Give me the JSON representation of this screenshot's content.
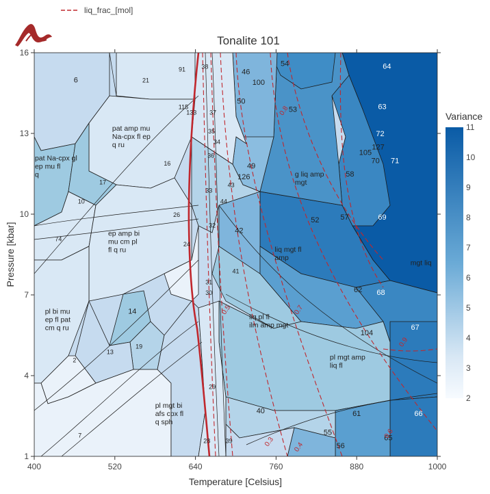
{
  "legend": {
    "series_label": "liq_frac_[mol]",
    "line_color": "#c0272d",
    "line_style": "dashed"
  },
  "logo": {
    "name": "wave-logo-icon",
    "color": "#a52a2a"
  },
  "colorbar": {
    "title": "Variance",
    "ticks": [
      "11",
      "10",
      "9",
      "8",
      "7",
      "6",
      "5",
      "4",
      "3",
      "2"
    ],
    "colors": [
      "#0a5ba6",
      "#d9e8f5",
      "#f7fbff"
    ],
    "min": 2,
    "max": 11
  },
  "chart_data": {
    "type": "phase-diagram",
    "title": "Tonalite 101",
    "xlabel": "Temperature [Celsius]",
    "ylabel": "Pressure [kbar]",
    "xlim": [
      400,
      1000
    ],
    "ylim": [
      1,
      16
    ],
    "x_ticks": [
      400,
      520,
      640,
      760,
      880,
      1000
    ],
    "x_tick_labels": [
      "400",
      "520",
      "640",
      "760",
      "880",
      "1000"
    ],
    "y_ticks": [
      1,
      4,
      7,
      10,
      13,
      16
    ],
    "y_tick_labels": [
      "1",
      "4",
      "7",
      "10",
      "13",
      "16"
    ],
    "grid": false,
    "legend_position": "top-left",
    "variance_fields": [
      {
        "label": "6",
        "T": 462,
        "P": 14.9,
        "variance": 6
      },
      {
        "label": "21",
        "T": 566,
        "P": 14.9,
        "variance": 4
      },
      {
        "label": "46",
        "T": 715,
        "P": 15.2,
        "variance": 5
      },
      {
        "label": "54",
        "T": 773,
        "P": 15.5,
        "variance": 7
      },
      {
        "label": "64",
        "T": 925,
        "P": 15.4,
        "variance": 10
      },
      {
        "label": "53",
        "T": 785,
        "P": 13.8,
        "variance": 7
      },
      {
        "label": "63",
        "T": 918,
        "P": 13.9,
        "variance": 9
      },
      {
        "label": "100",
        "T": 734,
        "P": 14.8,
        "variance": 5
      },
      {
        "label": "50",
        "T": 708,
        "P": 14.1,
        "variance": 5
      },
      {
        "label": "38",
        "T": 654,
        "P": 15.4,
        "variance": 3
      },
      {
        "label": "37",
        "T": 666,
        "P": 13.7,
        "variance": 4
      },
      {
        "label": "115",
        "T": 622,
        "P": 13.9,
        "variance": 3
      },
      {
        "label": "133",
        "T": 634,
        "P": 13.7,
        "variance": 3
      },
      {
        "label": "72",
        "T": 915,
        "P": 12.9,
        "variance": 9
      },
      {
        "label": "127",
        "T": 912,
        "P": 12.4,
        "variance": 8
      },
      {
        "label": "105",
        "T": 893,
        "P": 12.2,
        "variance": 8
      },
      {
        "label": "70",
        "T": 908,
        "P": 11.9,
        "variance": 8
      },
      {
        "label": "71",
        "T": 937,
        "P": 11.9,
        "variance": 9
      },
      {
        "label": "49",
        "T": 723,
        "P": 11.7,
        "variance": 5
      },
      {
        "label": "58",
        "T": 870,
        "P": 11.4,
        "variance": 8
      },
      {
        "label": "126",
        "T": 712,
        "P": 11.3,
        "variance": 5
      },
      {
        "label": "43",
        "T": 693,
        "P": 11.0,
        "variance": 4
      },
      {
        "label": "44",
        "T": 682,
        "P": 10.4,
        "variance": 4
      },
      {
        "label": "57",
        "T": 862,
        "P": 9.8,
        "variance": 8
      },
      {
        "label": "69",
        "T": 918,
        "P": 9.8,
        "variance": 9
      },
      {
        "label": "52",
        "T": 818,
        "P": 9.7,
        "variance": 7
      },
      {
        "label": "42",
        "T": 705,
        "P": 9.3,
        "variance": 5
      },
      {
        "label": "41",
        "T": 700,
        "P": 7.8,
        "variance": 4
      },
      {
        "label": "62",
        "T": 882,
        "P": 7.1,
        "variance": 8
      },
      {
        "label": "68",
        "T": 916,
        "P": 7.0,
        "variance": 9
      },
      {
        "label": "67",
        "T": 967,
        "P": 5.7,
        "variance": 9
      },
      {
        "label": "104",
        "T": 895,
        "P": 5.5,
        "variance": 8
      },
      {
        "label": "40",
        "T": 737,
        "P": 2.6,
        "variance": 5
      },
      {
        "label": "61",
        "T": 880,
        "P": 2.5,
        "variance": 8
      },
      {
        "label": "66",
        "T": 972,
        "P": 2.5,
        "variance": 9
      },
      {
        "label": "55",
        "T": 837,
        "P": 1.8,
        "variance": 7
      },
      {
        "label": "65",
        "T": 927,
        "P": 1.6,
        "variance": 8
      },
      {
        "label": "56",
        "T": 856,
        "P": 1.3,
        "variance": 7
      },
      {
        "label": "24",
        "T": 627,
        "P": 8.8,
        "variance": 3
      },
      {
        "label": "14",
        "T": 546,
        "P": 6.3,
        "variance": 5
      },
      {
        "label": "19",
        "T": 556,
        "P": 5.0,
        "variance": 4
      },
      {
        "label": "13",
        "T": 513,
        "P": 4.8,
        "variance": 3
      },
      {
        "label": "2",
        "T": 460,
        "P": 4.5,
        "variance": 2
      },
      {
        "label": "7",
        "T": 468,
        "P": 1.7,
        "variance": 2
      },
      {
        "label": "16",
        "T": 598,
        "P": 11.8,
        "variance": 3
      },
      {
        "label": "17",
        "T": 502,
        "P": 11.1,
        "variance": 4
      },
      {
        "label": "10",
        "T": 470,
        "P": 10.4,
        "variance": 3
      },
      {
        "label": "74",
        "T": 436,
        "P": 9.0,
        "variance": 3
      },
      {
        "label": "39",
        "T": 690,
        "P": 1.5,
        "variance": 3
      },
      {
        "label": "29",
        "T": 665,
        "P": 3.5,
        "variance": 3
      },
      {
        "label": "28",
        "T": 657,
        "P": 1.5,
        "variance": 3
      },
      {
        "label": "36",
        "T": 663,
        "P": 12.1,
        "variance": 3
      },
      {
        "label": "35",
        "T": 664,
        "P": 13.0,
        "variance": 3
      },
      {
        "label": "34",
        "T": 672,
        "P": 12.6,
        "variance": 3
      },
      {
        "label": "33",
        "T": 660,
        "P": 10.8,
        "variance": 3
      },
      {
        "label": "31",
        "T": 660,
        "P": 7.4,
        "variance": 3
      },
      {
        "label": "30",
        "T": 660,
        "P": 7.0,
        "variance": 3
      },
      {
        "label": "32",
        "T": 665,
        "P": 9.5,
        "variance": 3
      },
      {
        "label": "26",
        "T": 612,
        "P": 9.9,
        "variance": 3
      },
      {
        "label": "99",
        "T": 660,
        "P": 16.3,
        "variance": 3
      },
      {
        "label": "91",
        "T": 620,
        "P": 15.3,
        "variance": 3
      },
      {
        "label": "18",
        "T": 515,
        "P": 16.0,
        "variance": 3
      },
      {
        "label": "59",
        "T": 846,
        "P": 16.3,
        "variance": 5
      },
      {
        "label": "102",
        "T": 837,
        "P": 16.0,
        "variance": 5
      }
    ],
    "assemblage_labels": [
      {
        "text": [
          "pat amp mu",
          "Na-cpx fl ep",
          "q ru"
        ],
        "T": 516,
        "P": 13.1
      },
      {
        "text": [
          "pat Na-cpx gl",
          "ep mu fl",
          "q"
        ],
        "T": 401,
        "P": 12.0
      },
      {
        "text": [
          "ep amp bi",
          "mu cm pl",
          "fl q ru"
        ],
        "T": 510,
        "P": 9.2
      },
      {
        "text": [
          "g liq amp",
          "mgt"
        ],
        "T": 788,
        "P": 11.4
      },
      {
        "text": [
          "liq mgt fl",
          "amp"
        ],
        "T": 758,
        "P": 8.6
      },
      {
        "text": [
          "mgt liq"
        ],
        "T": 960,
        "P": 8.1
      },
      {
        "text": [
          "liq pl fl",
          "ilm amp mgt"
        ],
        "T": 720,
        "P": 6.1
      },
      {
        "text": [
          "pl mgt amp",
          "liq fl"
        ],
        "T": 840,
        "P": 4.6
      },
      {
        "text": [
          "pl bi mu",
          "ep fl pat",
          "cm q ru"
        ],
        "T": 416,
        "P": 6.3
      },
      {
        "text": [
          "pl mgt bi",
          "afs cpx fl",
          "q sph"
        ],
        "T": 580,
        "P": 2.8
      }
    ],
    "liq_frac_contours": [
      {
        "level": "0.8",
        "T": 774,
        "P": 13.8
      },
      {
        "level": "0.7",
        "T": 796,
        "P": 6.4
      },
      {
        "level": "0.6",
        "T": 930,
        "P": 1.8
      },
      {
        "level": "0.5",
        "T": 688,
        "P": 6.4
      },
      {
        "level": "0.4",
        "T": 796,
        "P": 1.3
      },
      {
        "level": "0.3",
        "T": 752,
        "P": 1.5
      },
      {
        "level": "0.9",
        "T": 952,
        "P": 5.2
      }
    ]
  }
}
